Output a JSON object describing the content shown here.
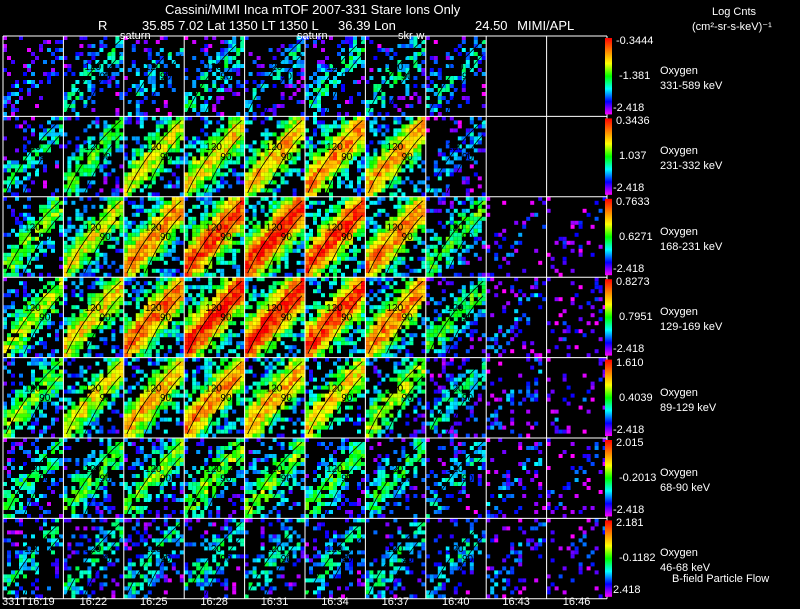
{
  "header": {
    "title": "Cassini/MIMI Inca mTOF  2007-331   Stare    Ions Only",
    "r_label": "R",
    "r_value": "35.85",
    "lat_label": "Lat",
    "lat_value": "7.02",
    "lt_label": "LT",
    "lt_value": "1350",
    "l_label": "L",
    "lon_value": "36.39",
    "lon_label": "Lon",
    "extra_value": "24.50",
    "affiliation": "MIMI/APL"
  },
  "target_labels": [
    "saturn",
    "saturn",
    "skr-w"
  ],
  "colorbar_title": {
    "line1": "Log Cnts",
    "line2": "(cm²-sr-s-keV)⁻¹"
  },
  "footer_note": "B-field Particle Flow",
  "chart_data": {
    "type": "heatmap",
    "title": "Cassini/MIMI Inca mTOF  2007-331   Stare    Ions Only",
    "x_time_labels": [
      "331T16:19",
      "16:22",
      "16:25",
      "16:28",
      "16:31",
      "16:34",
      "16:37",
      "16:40",
      "16:43",
      "16:46"
    ],
    "contour_labels": [
      "120",
      "90",
      "60"
    ],
    "colormap": [
      "#ff00ff",
      "#0000ff",
      "#00ffff",
      "#00ff00",
      "#ffff00",
      "#ff8000",
      "#ff0000"
    ],
    "rows": [
      {
        "species": "Oxygen",
        "energy": "331-589 keV",
        "cbar_max": "-0.3444",
        "cbar_mid": "-1.381",
        "cbar_min": "-2.418",
        "intensity": [
          0.2,
          0.35,
          0.3,
          0.35,
          0.3,
          0.35,
          0.35,
          0.3,
          0.0,
          0.0
        ]
      },
      {
        "species": "Oxygen",
        "energy": "231-332 keV",
        "cbar_max": "0.3436",
        "cbar_mid": "1.037",
        "cbar_min": "-2.418",
        "intensity": [
          0.35,
          0.45,
          0.6,
          0.65,
          0.7,
          0.75,
          0.7,
          0.25,
          0.0,
          0.0
        ]
      },
      {
        "species": "Oxygen",
        "energy": "168-231 keV",
        "cbar_max": "0.7633",
        "cbar_mid": "0.6271",
        "cbar_min": "-2.418",
        "intensity": [
          0.5,
          0.6,
          0.75,
          0.85,
          0.9,
          0.85,
          0.75,
          0.45,
          0.15,
          0.1
        ]
      },
      {
        "species": "Oxygen",
        "energy": "129-169 keV",
        "cbar_max": "0.8273",
        "cbar_mid": "0.7951",
        "cbar_min": "-2.418",
        "intensity": [
          0.55,
          0.65,
          0.8,
          0.9,
          0.9,
          0.85,
          0.75,
          0.45,
          0.2,
          0.12
        ]
      },
      {
        "species": "Oxygen",
        "energy": "89-129 keV",
        "cbar_max": "1.610",
        "cbar_mid": "0.4039",
        "cbar_min": "-2.418",
        "intensity": [
          0.5,
          0.6,
          0.7,
          0.75,
          0.7,
          0.65,
          0.55,
          0.35,
          0.2,
          0.15
        ]
      },
      {
        "species": "Oxygen",
        "energy": "68-90 keV",
        "cbar_max": "2.015",
        "cbar_mid": "-0.2013",
        "cbar_min": "-2.418",
        "intensity": [
          0.4,
          0.45,
          0.5,
          0.5,
          0.5,
          0.45,
          0.4,
          0.3,
          0.2,
          0.15
        ]
      },
      {
        "species": "Oxygen",
        "energy": "46-68 keV",
        "cbar_max": "2.181",
        "cbar_mid": "-0.1182",
        "cbar_min": "2.418",
        "intensity": [
          0.35,
          0.35,
          0.35,
          0.35,
          0.35,
          0.35,
          0.35,
          0.3,
          0.2,
          0.15
        ]
      }
    ]
  }
}
